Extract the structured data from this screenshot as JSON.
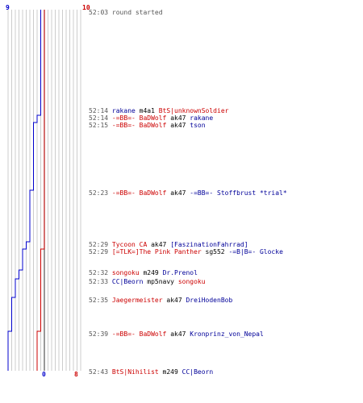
{
  "scores": {
    "blue_start": "9",
    "red_start": "10",
    "blue_end": "0",
    "red_end": "8"
  },
  "colors": {
    "blue_team": "#0000cc",
    "red_team": "#cc0000",
    "grid": "#aaaaaa",
    "grid_emphasis": "#555555",
    "text_gray": "#555555"
  },
  "timeline": {
    "blue_values": [
      9,
      9,
      8,
      7,
      6,
      5,
      4,
      3,
      2,
      1,
      0
    ],
    "red_values": [
      10,
      10,
      10,
      10,
      10,
      10,
      9,
      9,
      9,
      9,
      8
    ]
  },
  "events": [
    {
      "time": "52:03",
      "text": "round started"
    },
    {
      "time": "52:14",
      "killer": "rakane",
      "killer_team": "blue",
      "weapon": "m4a1",
      "victim": "BtS|unknownSoldier",
      "victim_team": "red"
    },
    {
      "time": "52:14",
      "killer": "-=BB=- BaDWolf",
      "killer_team": "red",
      "weapon": "ak47",
      "victim": "rakane",
      "victim_team": "blue"
    },
    {
      "time": "52:15",
      "killer": "-=BB=- BaDWolf",
      "killer_team": "red",
      "weapon": "ak47",
      "victim": "tson",
      "victim_team": "blue"
    },
    {
      "time": "52:23",
      "killer": "-=BB=- BaDWolf",
      "killer_team": "red",
      "weapon": "ak47",
      "victim": "-=BB=- Stoffbrust *trial*",
      "victim_team": "blue"
    },
    {
      "time": "52:29",
      "killer": "Tycoon CA",
      "killer_team": "red",
      "weapon": "ak47",
      "victim": "[FaszinationFahrrad]",
      "victim_team": "blue"
    },
    {
      "time": "52:29",
      "killer": "[=TLK=]The Pink Panther",
      "killer_team": "red",
      "weapon": "sg552",
      "victim": "-=B|B=- Glocke",
      "victim_team": "blue"
    },
    {
      "time": "52:32",
      "killer": "songoku",
      "killer_team": "red",
      "weapon": "m249",
      "victim": "Dr.Prenol",
      "victim_team": "blue"
    },
    {
      "time": "52:33",
      "killer": "CC|Beorn",
      "killer_team": "blue",
      "weapon": "mp5navy",
      "victim": "songoku",
      "victim_team": "red"
    },
    {
      "time": "52:35",
      "killer": "Jaegermeister",
      "killer_team": "red",
      "weapon": "ak47",
      "victim": "DreiHodenBob",
      "victim_team": "blue"
    },
    {
      "time": "52:39",
      "killer": "-=BB=- BaDWolf",
      "killer_team": "red",
      "weapon": "ak47",
      "victim": "Kronprinz_von_Nepal",
      "victim_team": "blue"
    },
    {
      "time": "52:43",
      "killer": "BtS|Nihilist",
      "killer_team": "red",
      "weapon": "m249",
      "victim": "CC|Beorn",
      "victim_team": "blue"
    }
  ]
}
